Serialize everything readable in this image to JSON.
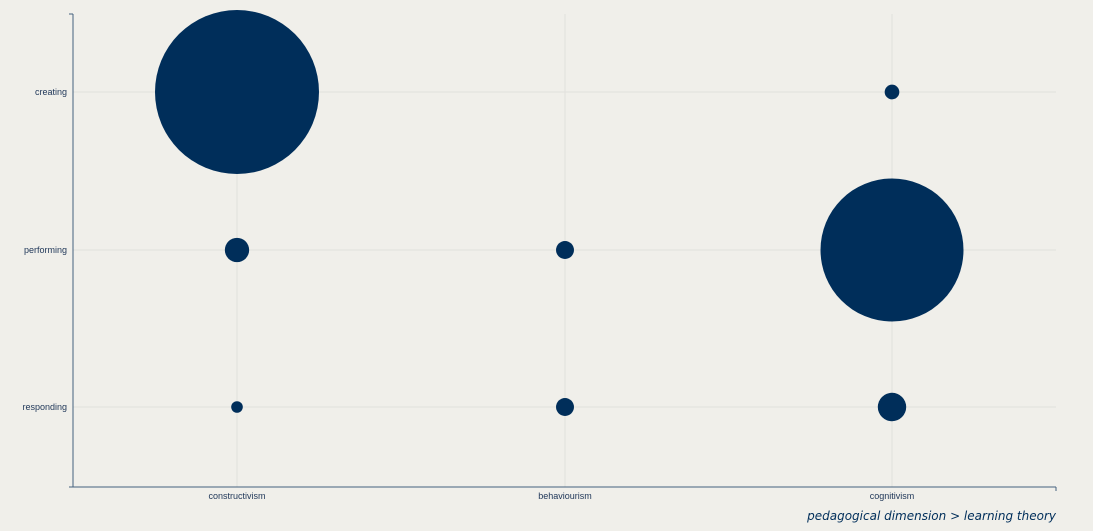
{
  "chart_data": {
    "type": "scatter",
    "subtype": "bubble",
    "x_categories": [
      "constructivism",
      "behaviourism",
      "cognitivism"
    ],
    "y_categories": [
      "responding",
      "performing",
      "creating"
    ],
    "xlabel": "pedagogical dimension > learning theory",
    "ylabel": "",
    "title": "",
    "grid": true,
    "points": [
      {
        "x": "constructivism",
        "y": "creating",
        "size": 100
      },
      {
        "x": "constructivism",
        "y": "performing",
        "size": 2.2
      },
      {
        "x": "constructivism",
        "y": "responding",
        "size": 0.5
      },
      {
        "x": "behaviourism",
        "y": "performing",
        "size": 1.2
      },
      {
        "x": "behaviourism",
        "y": "responding",
        "size": 1.2
      },
      {
        "x": "cognitivism",
        "y": "creating",
        "size": 0.8
      },
      {
        "x": "cognitivism",
        "y": "performing",
        "size": 76
      },
      {
        "x": "cognitivism",
        "y": "responding",
        "size": 3.0
      }
    ]
  },
  "colors": {
    "bubble": "#002e5a",
    "axis": "#44607e",
    "background": "#f0efea",
    "grid": "#e1e0dc"
  }
}
